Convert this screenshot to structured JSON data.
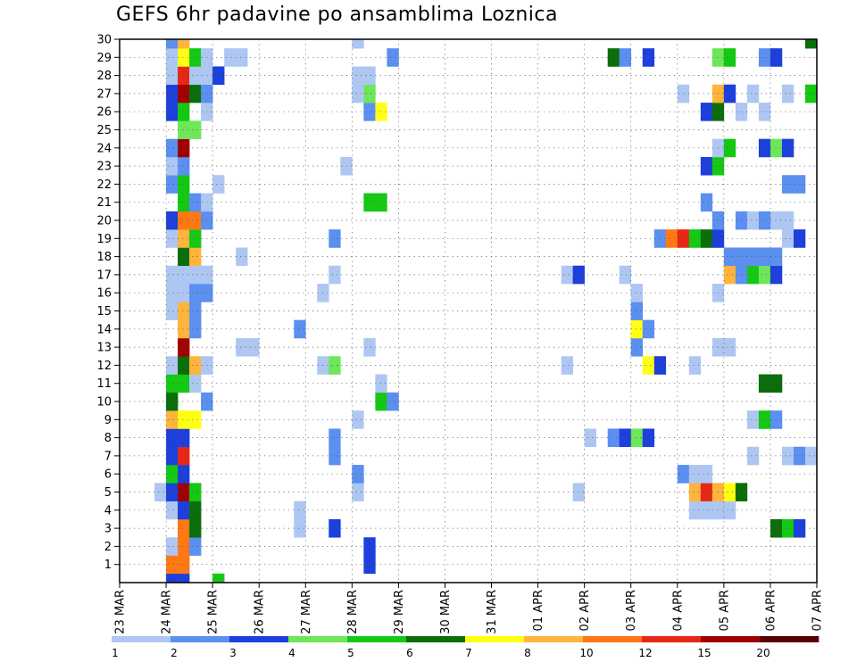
{
  "chart_data": {
    "type": "heatmap",
    "title": "GEFS 6hr padavine po ansamblima Loznica",
    "x_tick_labels": [
      "23 MAR",
      "24 MAR",
      "25 MAR",
      "26 MAR",
      "27 MAR",
      "28 MAR",
      "29 MAR",
      "30 MAR",
      "31 MAR",
      "01 APR",
      "02 APR",
      "03 APR",
      "04 APR",
      "05 APR",
      "06 APR",
      "07 APR"
    ],
    "y_tick_labels": [
      "1",
      "2",
      "3",
      "4",
      "5",
      "6",
      "7",
      "8",
      "9",
      "10",
      "11",
      "12",
      "13",
      "14",
      "15",
      "16",
      "17",
      "18",
      "19",
      "20",
      "21",
      "22",
      "23",
      "24",
      "25",
      "26",
      "27",
      "28",
      "29",
      "30"
    ],
    "x_unit": "6-hour step (0 = 23 MAR 00Z)",
    "y_unit": "ensemble member (0 = control)",
    "x_range": [
      0,
      60
    ],
    "y_range": [
      0,
      30
    ],
    "grid": true,
    "colorbar": {
      "labels": [
        "1",
        "2",
        "3",
        "4",
        "5",
        "6",
        "7",
        "8",
        "10",
        "12",
        "15",
        "20"
      ],
      "colors": [
        "#aec7f2",
        "#5b8ff0",
        "#1d3fdb",
        "#6ee65a",
        "#14c814",
        "#0a6e0a",
        "#ffff14",
        "#ffb43c",
        "#ff7814",
        "#e62814",
        "#a00000",
        "#5a0000"
      ]
    },
    "cells": [
      [
        4,
        0,
        3
      ],
      [
        5,
        0,
        3
      ],
      [
        8,
        0,
        5
      ],
      [
        4,
        1,
        9
      ],
      [
        5,
        1,
        9
      ],
      [
        21,
        1,
        3
      ],
      [
        60,
        1,
        2
      ],
      [
        4,
        2,
        1
      ],
      [
        5,
        2,
        9
      ],
      [
        6,
        2,
        2
      ],
      [
        21,
        2,
        3
      ],
      [
        60,
        2,
        2
      ],
      [
        5,
        3,
        9
      ],
      [
        6,
        3,
        6
      ],
      [
        15,
        3,
        1
      ],
      [
        18,
        3,
        3
      ],
      [
        56,
        3,
        6
      ],
      [
        57,
        3,
        5
      ],
      [
        58,
        3,
        3
      ],
      [
        4,
        4,
        1
      ],
      [
        5,
        4,
        3
      ],
      [
        6,
        4,
        6
      ],
      [
        15,
        4,
        1
      ],
      [
        49,
        4,
        1
      ],
      [
        50,
        4,
        1
      ],
      [
        51,
        4,
        1
      ],
      [
        52,
        4,
        1
      ],
      [
        3,
        5,
        1
      ],
      [
        4,
        5,
        3
      ],
      [
        5,
        5,
        11
      ],
      [
        6,
        5,
        5
      ],
      [
        20,
        5,
        1
      ],
      [
        39,
        5,
        1
      ],
      [
        49,
        5,
        8
      ],
      [
        50,
        5,
        10
      ],
      [
        51,
        5,
        8
      ],
      [
        52,
        5,
        7
      ],
      [
        53,
        5,
        6
      ],
      [
        4,
        6,
        5
      ],
      [
        5,
        6,
        3
      ],
      [
        20,
        6,
        2
      ],
      [
        48,
        6,
        2
      ],
      [
        49,
        6,
        1
      ],
      [
        50,
        6,
        1
      ],
      [
        4,
        7,
        3
      ],
      [
        5,
        7,
        10
      ],
      [
        18,
        7,
        2
      ],
      [
        54,
        7,
        1
      ],
      [
        57,
        7,
        1
      ],
      [
        58,
        7,
        2
      ],
      [
        59,
        7,
        1
      ],
      [
        4,
        8,
        3
      ],
      [
        5,
        8,
        3
      ],
      [
        18,
        8,
        2
      ],
      [
        40,
        8,
        1
      ],
      [
        42,
        8,
        2
      ],
      [
        43,
        8,
        3
      ],
      [
        44,
        8,
        4
      ],
      [
        45,
        8,
        3
      ],
      [
        4,
        9,
        8
      ],
      [
        5,
        9,
        7
      ],
      [
        6,
        9,
        7
      ],
      [
        20,
        9,
        1
      ],
      [
        54,
        9,
        1
      ],
      [
        55,
        9,
        5
      ],
      [
        56,
        9,
        2
      ],
      [
        4,
        10,
        6
      ],
      [
        7,
        10,
        2
      ],
      [
        22,
        10,
        5
      ],
      [
        23,
        10,
        2
      ],
      [
        4,
        11,
        5
      ],
      [
        5,
        11,
        5
      ],
      [
        6,
        11,
        1
      ],
      [
        22,
        11,
        1
      ],
      [
        55,
        11,
        6
      ],
      [
        56,
        11,
        6
      ],
      [
        4,
        12,
        1
      ],
      [
        5,
        12,
        6
      ],
      [
        6,
        12,
        8
      ],
      [
        7,
        12,
        1
      ],
      [
        17,
        12,
        1
      ],
      [
        18,
        12,
        4
      ],
      [
        38,
        12,
        1
      ],
      [
        45,
        12,
        7
      ],
      [
        46,
        12,
        3
      ],
      [
        49,
        12,
        1
      ],
      [
        5,
        13,
        11
      ],
      [
        10,
        13,
        1
      ],
      [
        11,
        13,
        1
      ],
      [
        21,
        13,
        1
      ],
      [
        44,
        13,
        2
      ],
      [
        51,
        13,
        1
      ],
      [
        52,
        13,
        1
      ],
      [
        5,
        14,
        8
      ],
      [
        6,
        14,
        2
      ],
      [
        15,
        14,
        2
      ],
      [
        44,
        14,
        7
      ],
      [
        45,
        14,
        2
      ],
      [
        4,
        15,
        1
      ],
      [
        5,
        15,
        8
      ],
      [
        6,
        15,
        2
      ],
      [
        44,
        15,
        2
      ],
      [
        4,
        16,
        1
      ],
      [
        5,
        16,
        1
      ],
      [
        6,
        16,
        2
      ],
      [
        7,
        16,
        2
      ],
      [
        17,
        16,
        1
      ],
      [
        44,
        16,
        1
      ],
      [
        51,
        16,
        1
      ],
      [
        60,
        16,
        1
      ],
      [
        4,
        17,
        1
      ],
      [
        5,
        17,
        1
      ],
      [
        6,
        17,
        1
      ],
      [
        7,
        17,
        1
      ],
      [
        18,
        17,
        1
      ],
      [
        38,
        17,
        1
      ],
      [
        39,
        17,
        3
      ],
      [
        43,
        17,
        1
      ],
      [
        52,
        17,
        8
      ],
      [
        53,
        17,
        2
      ],
      [
        54,
        17,
        5
      ],
      [
        55,
        17,
        4
      ],
      [
        56,
        17,
        3
      ],
      [
        5,
        18,
        6
      ],
      [
        6,
        18,
        8
      ],
      [
        10,
        18,
        1
      ],
      [
        52,
        18,
        2
      ],
      [
        53,
        18,
        2
      ],
      [
        54,
        18,
        2
      ],
      [
        55,
        18,
        2
      ],
      [
        56,
        18,
        2
      ],
      [
        4,
        19,
        1
      ],
      [
        5,
        19,
        8
      ],
      [
        6,
        19,
        5
      ],
      [
        18,
        19,
        2
      ],
      [
        46,
        19,
        2
      ],
      [
        47,
        19,
        9
      ],
      [
        48,
        19,
        10
      ],
      [
        49,
        19,
        5
      ],
      [
        50,
        19,
        6
      ],
      [
        51,
        19,
        3
      ],
      [
        57,
        19,
        1
      ],
      [
        58,
        19,
        3
      ],
      [
        4,
        20,
        3
      ],
      [
        5,
        20,
        9
      ],
      [
        6,
        20,
        9
      ],
      [
        7,
        20,
        2
      ],
      [
        51,
        20,
        2
      ],
      [
        53,
        20,
        2
      ],
      [
        54,
        20,
        1
      ],
      [
        55,
        20,
        2
      ],
      [
        56,
        20,
        1
      ],
      [
        57,
        20,
        1
      ],
      [
        5,
        21,
        5
      ],
      [
        6,
        21,
        2
      ],
      [
        7,
        21,
        1
      ],
      [
        21,
        21,
        5
      ],
      [
        22,
        21,
        5
      ],
      [
        50,
        21,
        2
      ],
      [
        4,
        22,
        2
      ],
      [
        5,
        22,
        5
      ],
      [
        8,
        22,
        1
      ],
      [
        57,
        22,
        2
      ],
      [
        58,
        22,
        2
      ],
      [
        4,
        23,
        1
      ],
      [
        5,
        23,
        2
      ],
      [
        19,
        23,
        1
      ],
      [
        50,
        23,
        3
      ],
      [
        51,
        23,
        5
      ],
      [
        4,
        24,
        2
      ],
      [
        5,
        24,
        11
      ],
      [
        51,
        24,
        1
      ],
      [
        52,
        24,
        5
      ],
      [
        55,
        24,
        3
      ],
      [
        56,
        24,
        4
      ],
      [
        57,
        24,
        3
      ],
      [
        5,
        25,
        4
      ],
      [
        6,
        25,
        4
      ],
      [
        4,
        26,
        3
      ],
      [
        5,
        26,
        5
      ],
      [
        7,
        26,
        1
      ],
      [
        21,
        26,
        2
      ],
      [
        22,
        26,
        7
      ],
      [
        50,
        26,
        3
      ],
      [
        51,
        26,
        6
      ],
      [
        53,
        26,
        1
      ],
      [
        55,
        26,
        1
      ],
      [
        60,
        26,
        2
      ],
      [
        4,
        27,
        3
      ],
      [
        5,
        27,
        11
      ],
      [
        6,
        27,
        6
      ],
      [
        7,
        27,
        2
      ],
      [
        20,
        27,
        1
      ],
      [
        21,
        27,
        4
      ],
      [
        48,
        27,
        1
      ],
      [
        51,
        27,
        8
      ],
      [
        52,
        27,
        3
      ],
      [
        54,
        27,
        1
      ],
      [
        57,
        27,
        1
      ],
      [
        59,
        27,
        5
      ],
      [
        60,
        27,
        7
      ],
      [
        4,
        28,
        1
      ],
      [
        5,
        28,
        10
      ],
      [
        6,
        28,
        1
      ],
      [
        7,
        28,
        1
      ],
      [
        8,
        28,
        3
      ],
      [
        20,
        28,
        1
      ],
      [
        21,
        28,
        1
      ],
      [
        4,
        29,
        1
      ],
      [
        5,
        29,
        7
      ],
      [
        6,
        29,
        5
      ],
      [
        7,
        29,
        1
      ],
      [
        9,
        29,
        1
      ],
      [
        10,
        29,
        1
      ],
      [
        23,
        29,
        2
      ],
      [
        42,
        29,
        6
      ],
      [
        43,
        29,
        2
      ],
      [
        45,
        29,
        3
      ],
      [
        51,
        29,
        4
      ],
      [
        52,
        29,
        5
      ],
      [
        55,
        29,
        2
      ],
      [
        56,
        29,
        3
      ],
      [
        4,
        30,
        2
      ],
      [
        5,
        30,
        8
      ],
      [
        20,
        30,
        1
      ],
      [
        59,
        30,
        6
      ],
      [
        60,
        30,
        11
      ],
      [
        61,
        30,
        2
      ],
      [
        5,
        31,
        3
      ],
      [
        6,
        31,
        3
      ],
      [
        7,
        31,
        2
      ],
      [
        20,
        31,
        2
      ],
      [
        45,
        31,
        1
      ],
      [
        48,
        31,
        3
      ],
      [
        55,
        31,
        1
      ],
      [
        59,
        31,
        1
      ]
    ]
  }
}
